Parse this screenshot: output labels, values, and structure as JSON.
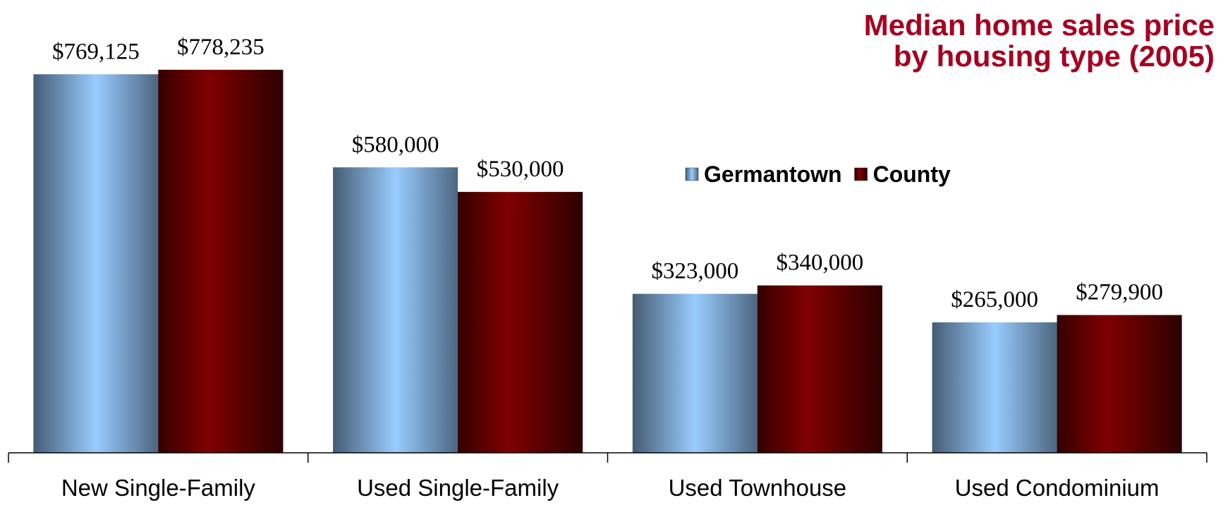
{
  "chart_data": {
    "type": "bar",
    "title": [
      "Median home sales price",
      "by housing type (2005)"
    ],
    "categories": [
      "New Single-Family",
      "Used Single-Family",
      "Used Townhouse",
      "Used Condominium"
    ],
    "series": [
      {
        "name": "Germantown",
        "color": "#99ccff",
        "values": [
          769125,
          580000,
          323000,
          265000
        ],
        "value_labels": [
          "$769,125",
          "$580,000",
          "$323,000",
          "$265,000"
        ]
      },
      {
        "name": "County",
        "color": "#800000",
        "values": [
          778235,
          530000,
          340000,
          279900
        ],
        "value_labels": [
          "$778,235",
          "$530,000",
          "$340,000",
          "$279,900"
        ]
      }
    ],
    "ylim": [
      0,
      920000
    ],
    "legend": "upper right"
  }
}
